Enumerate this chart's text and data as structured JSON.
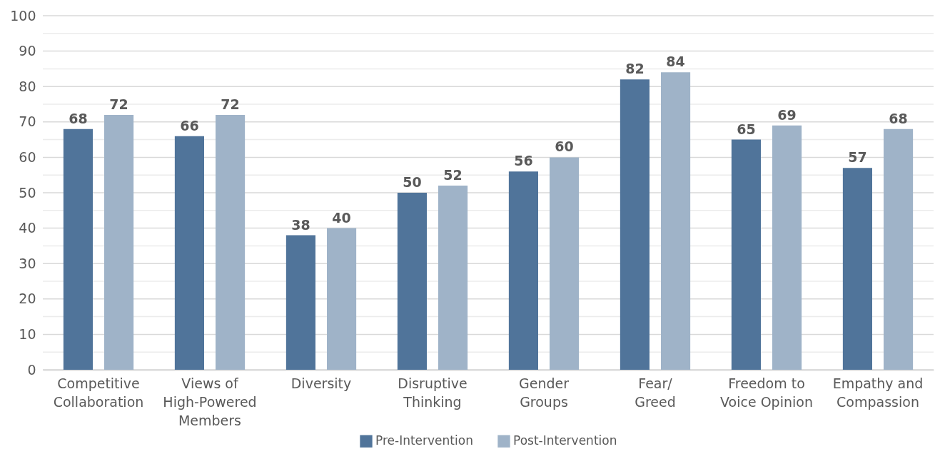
{
  "chart_data": {
    "type": "bar",
    "categories": [
      "Competitive\nCollaboration",
      "Views of\nHigh-Powered\nMembers",
      "Diversity",
      "Disruptive\nThinking",
      "Gender\nGroups",
      "Fear/\nGreed",
      "Freedom to\nVoice Opinion",
      "Empathy and\nCompassion"
    ],
    "series": [
      {
        "name": "Pre-Intervention",
        "color": "#50749a",
        "values": [
          68,
          66,
          38,
          50,
          56,
          82,
          65,
          57
        ]
      },
      {
        "name": "Post-Intervention",
        "color": "#9fb3c8",
        "values": [
          72,
          72,
          40,
          52,
          60,
          84,
          69,
          68
        ]
      }
    ],
    "ylim": [
      0,
      100
    ],
    "yticks": [
      0,
      {
        "value": 5,
        "label": null
      },
      10,
      {
        "value": 15,
        "label": null
      },
      20,
      {
        "value": 25,
        "label": null
      },
      30,
      {
        "value": 35,
        "label": null
      },
      40,
      {
        "value": 45,
        "label": null
      },
      50,
      {
        "value": 55,
        "label": null
      },
      60,
      {
        "value": 65,
        "label": null
      },
      70,
      {
        "value": 75,
        "label": null
      },
      80,
      {
        "value": 85,
        "label": null
      },
      90,
      {
        "value": 95,
        "label": null
      },
      100
    ],
    "grid": true,
    "legend": "bottom",
    "data_labels": true
  }
}
